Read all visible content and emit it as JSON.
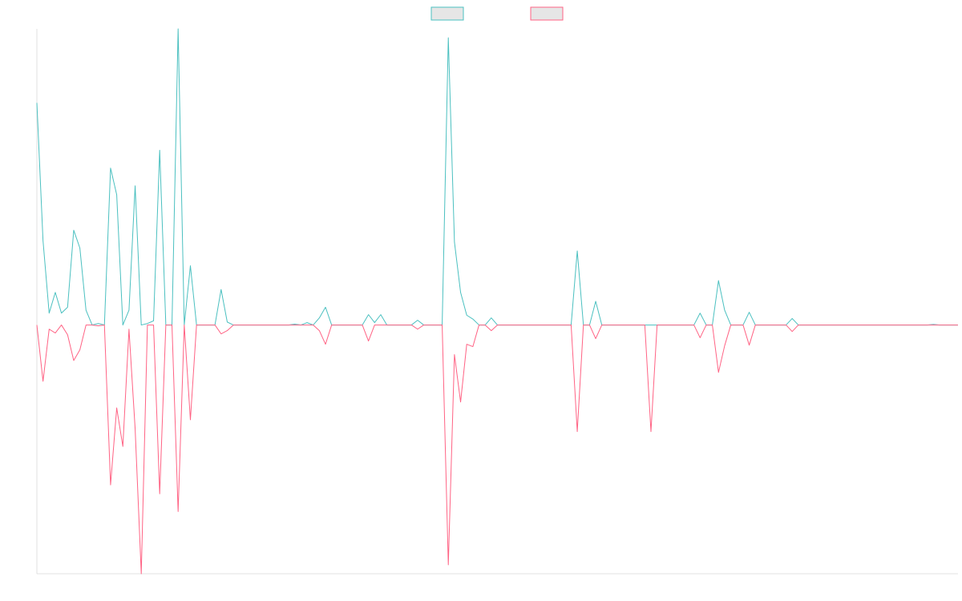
{
  "chart_data": {
    "type": "line",
    "legend": "top",
    "ylim": [
      -84,
      100
    ],
    "series": [
      {
        "color": "#4bc0c0",
        "values": [
          75,
          28.5,
          4,
          11,
          4,
          6,
          32,
          26,
          5,
          0,
          0.5,
          0,
          53,
          44,
          0,
          5,
          47,
          0,
          0.5,
          1.4,
          59,
          0,
          0,
          100,
          0,
          20,
          0,
          0,
          0,
          0,
          12,
          1,
          0,
          0,
          0,
          0,
          0,
          0,
          0,
          0,
          0,
          0,
          0.3,
          0,
          0.8,
          0,
          2.4,
          6,
          0,
          0,
          0,
          0,
          0,
          0,
          3.5,
          0.8,
          3.5,
          0,
          0,
          0,
          0,
          0,
          1.6,
          0,
          0,
          0,
          0,
          97,
          28,
          11,
          3.3,
          2,
          0,
          0,
          2.4,
          0,
          0,
          0,
          0,
          0,
          0,
          0,
          0,
          0,
          0,
          0,
          0,
          0,
          25,
          0,
          0,
          8,
          0,
          0,
          0,
          0,
          0,
          0,
          0,
          0,
          0,
          0,
          0,
          0,
          0,
          0,
          0,
          0,
          4,
          0,
          0,
          15,
          5,
          0,
          0,
          0,
          4.3,
          0,
          0,
          0,
          0,
          0,
          0,
          2.2,
          0,
          0,
          0,
          0,
          0,
          0,
          0,
          0,
          0,
          0,
          0,
          0,
          0,
          0,
          0,
          0,
          0,
          0,
          0,
          0,
          0,
          0,
          0.2,
          0,
          0,
          0,
          0
        ]
      },
      {
        "color": "#ff6384",
        "values": [
          0,
          -19,
          -1.4,
          -2.7,
          0,
          -3.3,
          -12,
          -8.4,
          0,
          0,
          -0.3,
          0,
          -54,
          -28,
          -41,
          -1.4,
          -35,
          -84,
          0,
          0,
          -57,
          0,
          0,
          -63,
          0,
          -32,
          0,
          0,
          0,
          0,
          -3,
          -1.9,
          0,
          0,
          0,
          0,
          0,
          0,
          0,
          0,
          0,
          0,
          0,
          0,
          0,
          0,
          -1.9,
          -6.5,
          0,
          0,
          0,
          0,
          0,
          0,
          -5.4,
          0,
          0,
          0,
          0,
          0,
          0,
          0,
          -1.4,
          0,
          0,
          0,
          0,
          -81,
          -10,
          -26,
          -6.5,
          -7.3,
          0,
          0,
          -1.9,
          0,
          0,
          0,
          0,
          0,
          0,
          0,
          0,
          0,
          0,
          0,
          0,
          0,
          -36,
          0,
          0,
          -4.6,
          0,
          0,
          0,
          0,
          0,
          0,
          0,
          0,
          -36,
          0,
          0,
          0,
          0,
          0,
          0,
          0,
          -4.3,
          0,
          0,
          -16,
          -7,
          0,
          0,
          0,
          -6.8,
          0,
          0,
          0,
          0,
          0,
          0,
          -2.2,
          0,
          0,
          0,
          0,
          0,
          0,
          0,
          0,
          0,
          0,
          0,
          0,
          0,
          0,
          0,
          0,
          0,
          0,
          0,
          0,
          0,
          0,
          0,
          0,
          0,
          0,
          0
        ]
      }
    ]
  }
}
